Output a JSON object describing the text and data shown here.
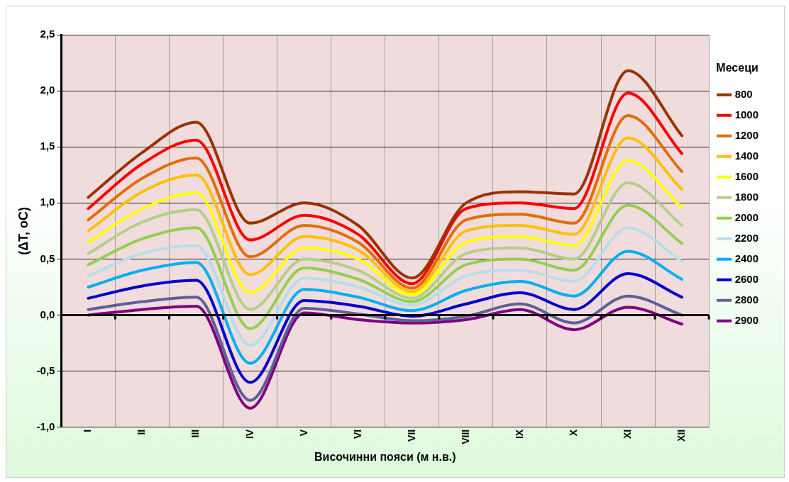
{
  "chart_data": {
    "type": "line",
    "xlabel": "Височинни пояси (м н.в.)",
    "ylabel": "(ΔT, oC)",
    "legend_title": "Месеци",
    "categories": [
      "I",
      "II",
      "III",
      "IV",
      "V",
      "VI",
      "VII",
      "VIII",
      "IX",
      "X",
      "XI",
      "XII"
    ],
    "ylim": [
      -1.0,
      2.5
    ],
    "yticks": [
      {
        "value": -1.0,
        "label": "-1,0"
      },
      {
        "value": -0.5,
        "label": "-0,5"
      },
      {
        "value": 0,
        "label": "0,0"
      },
      {
        "value": 0.5,
        "label": "0,5"
      },
      {
        "value": 1.0,
        "label": "1,0"
      },
      {
        "value": 1.5,
        "label": "1,5"
      },
      {
        "value": 2.0,
        "label": "2,0"
      },
      {
        "value": 2.5,
        "label": "2,5"
      }
    ],
    "grid": true,
    "legend": "right",
    "marker": "none",
    "line_style": "solid",
    "series": [
      {
        "name": "800",
        "color": "#993300",
        "values": [
          1.05,
          1.45,
          1.72,
          0.82,
          1.0,
          0.8,
          0.33,
          1.0,
          1.1,
          1.08,
          2.18,
          1.6
        ]
      },
      {
        "name": "1000",
        "color": "#ff0000",
        "values": [
          0.95,
          1.35,
          1.56,
          0.67,
          0.89,
          0.72,
          0.28,
          0.95,
          1.0,
          0.95,
          1.98,
          1.44
        ]
      },
      {
        "name": "1200",
        "color": "#e46c0a",
        "values": [
          0.85,
          1.22,
          1.4,
          0.52,
          0.8,
          0.65,
          0.24,
          0.85,
          0.9,
          0.82,
          1.78,
          1.28
        ]
      },
      {
        "name": "1400",
        "color": "#ffc000",
        "values": [
          0.75,
          1.1,
          1.25,
          0.36,
          0.7,
          0.58,
          0.21,
          0.75,
          0.8,
          0.72,
          1.58,
          1.12
        ]
      },
      {
        "name": "1600",
        "color": "#ffff00",
        "values": [
          0.65,
          0.95,
          1.09,
          0.2,
          0.6,
          0.5,
          0.18,
          0.65,
          0.7,
          0.62,
          1.38,
          0.96
        ]
      },
      {
        "name": "1800",
        "color": "#b3cf8a",
        "values": [
          0.55,
          0.83,
          0.94,
          0.05,
          0.5,
          0.4,
          0.15,
          0.55,
          0.6,
          0.5,
          1.18,
          0.8
        ]
      },
      {
        "name": "2000",
        "color": "#92d050",
        "values": [
          0.45,
          0.68,
          0.78,
          -0.12,
          0.42,
          0.32,
          0.12,
          0.45,
          0.5,
          0.4,
          0.98,
          0.64
        ]
      },
      {
        "name": "2200",
        "color": "#b7dee8",
        "values": [
          0.35,
          0.55,
          0.62,
          -0.27,
          0.33,
          0.25,
          0.09,
          0.35,
          0.4,
          0.3,
          0.78,
          0.48
        ]
      },
      {
        "name": "2400",
        "color": "#00b0f0",
        "values": [
          0.25,
          0.4,
          0.47,
          -0.43,
          0.23,
          0.16,
          0.04,
          0.22,
          0.3,
          0.17,
          0.57,
          0.32
        ]
      },
      {
        "name": "2600",
        "color": "#0000cc",
        "values": [
          0.15,
          0.26,
          0.31,
          -0.6,
          0.13,
          0.08,
          -0.01,
          0.1,
          0.2,
          0.05,
          0.37,
          0.16
        ]
      },
      {
        "name": "2800",
        "color": "#5f5f99",
        "values": [
          0.05,
          0.12,
          0.16,
          -0.76,
          0.06,
          0.01,
          -0.05,
          -0.01,
          0.1,
          -0.07,
          0.17,
          0.0
        ]
      },
      {
        "name": "2900",
        "color": "#7f007f",
        "values": [
          0.0,
          0.05,
          0.08,
          -0.83,
          0.02,
          -0.04,
          -0.07,
          -0.04,
          0.05,
          -0.13,
          0.07,
          -0.08
        ]
      }
    ]
  }
}
